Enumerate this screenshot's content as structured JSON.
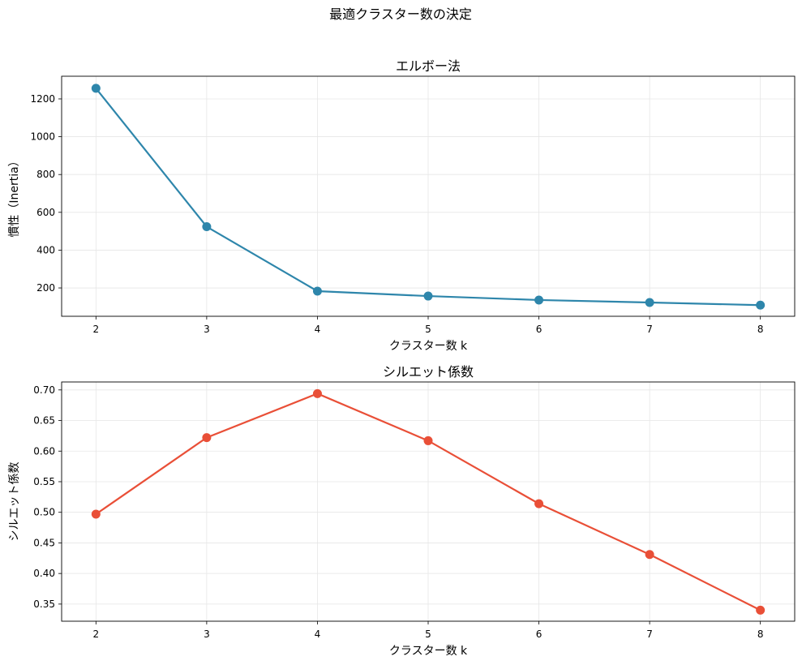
{
  "suptitle": "最適クラスター数の決定",
  "chart_data": [
    {
      "type": "line",
      "title": "エルボー法",
      "xlabel": "クラスター数 k",
      "ylabel": "慣性（Inertia）",
      "x": [
        2,
        3,
        4,
        5,
        6,
        7,
        8
      ],
      "values": [
        1256,
        524,
        183,
        157,
        136,
        123,
        109
      ],
      "xlim": [
        1.69,
        8.31
      ],
      "ylim": [
        50,
        1320
      ],
      "xticks": [
        2,
        3,
        4,
        5,
        6,
        7,
        8
      ],
      "yticks": [
        200,
        400,
        600,
        800,
        1000,
        1200
      ],
      "ytick_labels": [
        "200",
        "400",
        "600",
        "800",
        "1000",
        "1200"
      ],
      "color": "#2E86AB",
      "grid": true
    },
    {
      "type": "line",
      "title": "シルエット係数",
      "xlabel": "クラスター数 k",
      "ylabel": "シルエット係数",
      "x": [
        2,
        3,
        4,
        5,
        6,
        7,
        8
      ],
      "values": [
        0.497,
        0.622,
        0.694,
        0.617,
        0.514,
        0.431,
        0.34
      ],
      "xlim": [
        1.69,
        8.31
      ],
      "ylim": [
        0.322,
        0.713
      ],
      "xticks": [
        2,
        3,
        4,
        5,
        6,
        7,
        8
      ],
      "yticks": [
        0.35,
        0.4,
        0.45,
        0.5,
        0.55,
        0.6,
        0.65,
        0.7
      ],
      "ytick_labels": [
        "0.35",
        "0.40",
        "0.45",
        "0.50",
        "0.55",
        "0.60",
        "0.65",
        "0.70"
      ],
      "color": "#E94F37",
      "grid": true
    }
  ]
}
